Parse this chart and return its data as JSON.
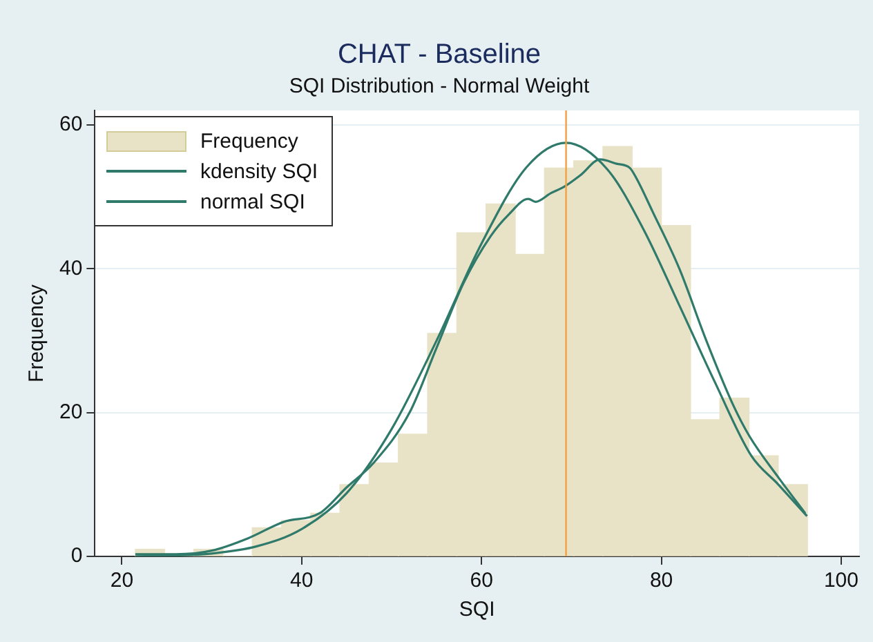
{
  "chart_data": {
    "type": "histogram",
    "title": "CHAT - Baseline",
    "subtitle": "SQI Distribution - Normal Weight",
    "xlabel": "SQI",
    "ylabel": "Frequency",
    "bins": [
      21.5,
      24.75,
      28,
      31.25,
      34.5,
      37.75,
      41,
      44.25,
      47.5,
      50.75,
      54,
      57.25,
      60.5,
      63.75,
      67,
      70.25,
      73.5,
      76.75,
      80,
      83.25,
      86.5,
      89.75,
      93,
      96.25
    ],
    "series": [
      {
        "name": "Frequency",
        "color": "#e8e3c6",
        "values": [
          1,
          0,
          1,
          0,
          4,
          5,
          6,
          10,
          13,
          17,
          31,
          45,
          49,
          42,
          54,
          55,
          57,
          54,
          46,
          19,
          22,
          14,
          10
        ]
      },
      {
        "name": "kdensity SQI",
        "type": "line",
        "color": "#2f7a6a",
        "x": [
          21.5,
          26,
          30,
          34,
          38,
          42,
          45,
          48,
          52,
          55,
          58,
          61,
          63,
          65.2,
          66,
          67.7,
          69.2,
          71,
          73.2,
          75,
          76.5,
          77.3,
          79,
          82,
          85,
          88,
          89.8,
          93,
          96
        ],
        "values": [
          0.3,
          0.3,
          0.8,
          2.5,
          4.8,
          6,
          9.6,
          13,
          20,
          29,
          38,
          44.5,
          47.5,
          49.7,
          49.3,
          50.5,
          51.4,
          53,
          55.2,
          54.6,
          54,
          52.4,
          48,
          40,
          30,
          21,
          16.7,
          11,
          6
        ]
      },
      {
        "name": "normal SQI",
        "type": "line",
        "color": "#2f7a6a",
        "x": [
          21.5,
          25,
          30,
          35,
          40,
          45,
          50,
          55,
          60,
          65,
          69.4,
          74,
          78,
          82,
          86,
          90,
          93,
          96.2
        ],
        "values": [
          0,
          0.1,
          0.4,
          1.4,
          3.8,
          8.8,
          17.7,
          30,
          43.5,
          54.1,
          57.5,
          53.8,
          45.5,
          34.9,
          24.1,
          14,
          10,
          5.6
        ]
      }
    ],
    "ref_lines": [
      {
        "axis": "x",
        "value": 69.4,
        "color": "#f5a040"
      }
    ],
    "xlim": [
      17,
      102
    ],
    "xticks": [
      20,
      40,
      60,
      80,
      100
    ],
    "ylim": [
      0,
      62
    ],
    "yticks": [
      0,
      20,
      40,
      60
    ],
    "grid": "y",
    "legend": "top left"
  }
}
